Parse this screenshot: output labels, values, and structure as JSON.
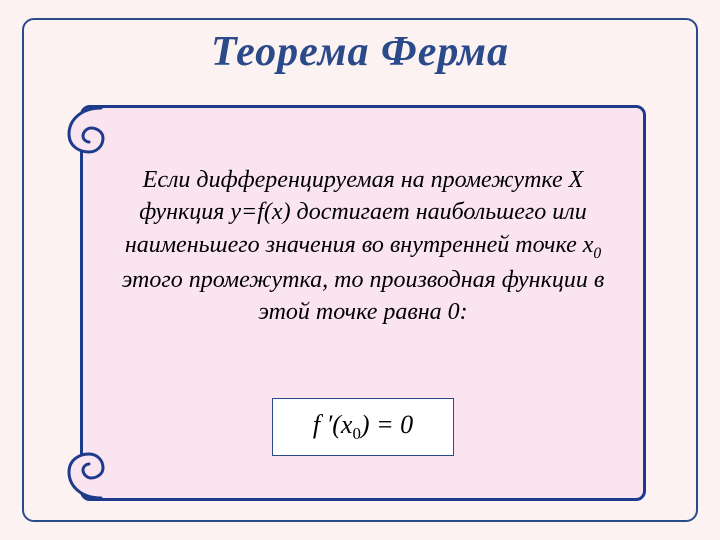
{
  "title": {
    "text": "Теорема Ферма",
    "color": "#2a4a8a",
    "fontsize": 42
  },
  "scroll": {
    "body_html": "Если дифференцируемая на промежутке Х функция y=f(x) достигает наибольшего или наименьшего значения во внутренней точке x<sub class='sub-i'>0</sub> этого промежутка, то производная функции в этой точке равна 0:",
    "body_color": "#000000",
    "body_fontsize": 24,
    "background_color": "#f9e4f0",
    "border_color": "#1e3a8a"
  },
  "formula": {
    "html": "f ′(x<sub class='sub'>0</sub>) = 0",
    "background": "#ffffff",
    "border_color": "#2a4a8a",
    "text_color": "#000000",
    "fontsize": 26
  },
  "slide": {
    "background_color": "#fdf2f2",
    "border_color": "#2a4a8a"
  },
  "curl": {
    "stroke": "#1e3a8a",
    "fill": "#f9e4f0"
  }
}
